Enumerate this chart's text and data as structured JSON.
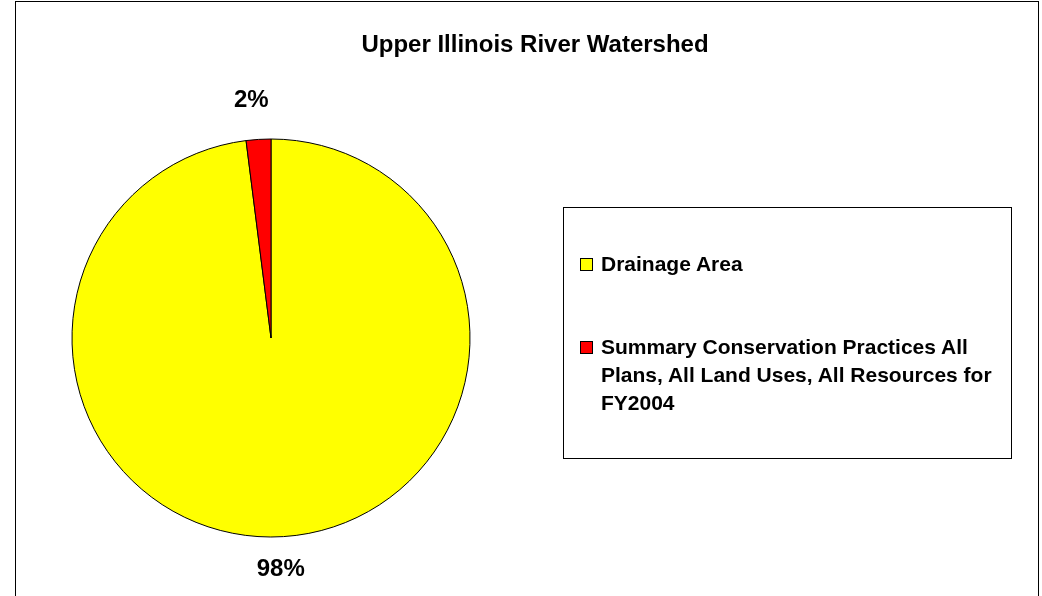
{
  "chart_data": {
    "type": "pie",
    "title": "Upper Illinois River Watershed",
    "categories": [
      "Drainage Area",
      "Summary Conservation Practices All Plans, All Land Uses, All Resources for FY2004"
    ],
    "values": [
      98,
      2
    ],
    "colors": [
      "#ffff00",
      "#ff0000"
    ],
    "value_labels": [
      "98%",
      "2%"
    ],
    "legend": "right"
  }
}
